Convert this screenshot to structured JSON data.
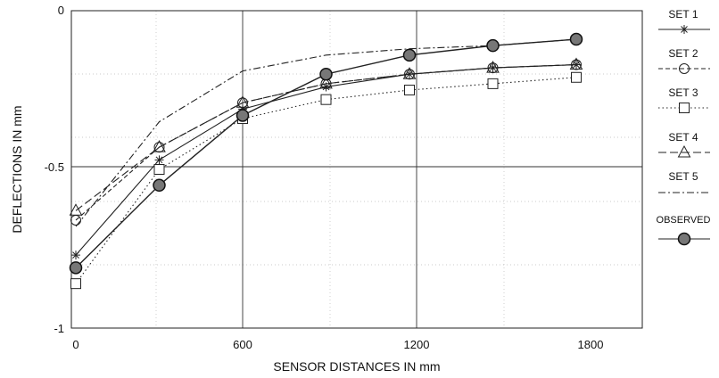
{
  "chart_data": {
    "type": "line",
    "xlabel": "SENSOR DISTANCES IN mm",
    "ylabel": "DEFLECTIONS IN mm",
    "xlim": [
      0,
      2000
    ],
    "ylim": [
      -1,
      0
    ],
    "xticks": [
      0,
      600,
      1200,
      1800
    ],
    "xtick_labels": [
      "0",
      "600",
      "1200",
      "1800"
    ],
    "yticks": [
      0,
      -0.5,
      -1
    ],
    "ytick_labels": [
      "0",
      "-0.5",
      "-1"
    ],
    "grid": true,
    "legend_position": "right",
    "x": [
      0,
      300,
      600,
      900,
      1200,
      1500,
      1800
    ],
    "series": [
      {
        "name": "SET 1",
        "marker": "star",
        "dash": "solid",
        "values": [
          -0.77,
          -0.47,
          -0.31,
          -0.24,
          -0.2,
          -0.18,
          -0.17
        ]
      },
      {
        "name": "SET 2",
        "marker": "circle-open",
        "dash": "dashed",
        "values": [
          -0.66,
          -0.43,
          -0.29,
          -0.23,
          -0.2,
          -0.18,
          -0.17
        ]
      },
      {
        "name": "SET 3",
        "marker": "square-open",
        "dash": "dotted",
        "values": [
          -0.86,
          -0.5,
          -0.34,
          -0.28,
          -0.25,
          -0.23,
          -0.21
        ]
      },
      {
        "name": "SET 4",
        "marker": "triangle-open",
        "dash": "longdash",
        "values": [
          -0.63,
          -0.43,
          -0.29,
          -0.23,
          -0.2,
          -0.18,
          -0.17
        ]
      },
      {
        "name": "SET 5",
        "marker": "none",
        "dash": "dashdot",
        "values": [
          -0.68,
          -0.35,
          -0.19,
          -0.14,
          -0.12,
          -0.11,
          -0.09
        ]
      },
      {
        "name": "OBSERVED",
        "marker": "circle-filled",
        "dash": "solid",
        "values": [
          -0.81,
          -0.55,
          -0.33,
          -0.2,
          -0.14,
          -0.11,
          -0.09
        ]
      }
    ]
  }
}
